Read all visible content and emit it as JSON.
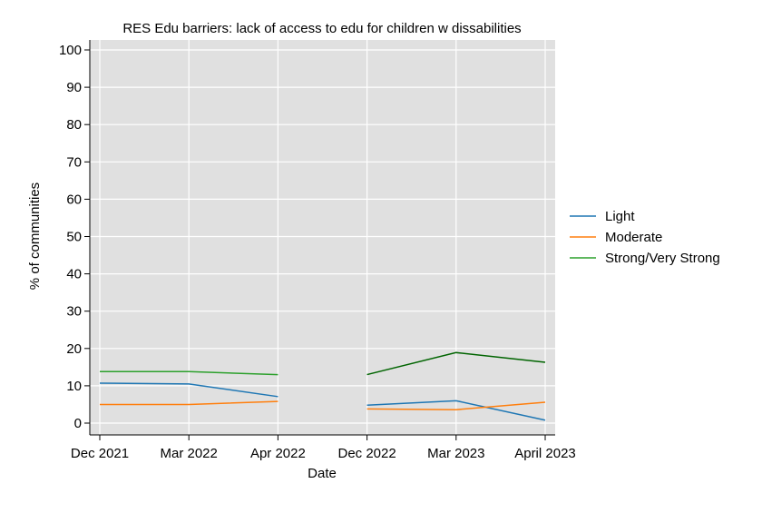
{
  "chart_data": {
    "type": "line",
    "title": "RES Edu barriers: lack of access to edu for children w dissabilities",
    "xlabel": "Date",
    "ylabel": "% of communities",
    "categories": [
      "Dec 2021",
      "Mar 2022",
      "Apr 2022",
      "Dec 2022",
      "Mar 2023",
      "April 2023"
    ],
    "ylim": [
      0,
      100
    ],
    "yticks": [
      0,
      10,
      20,
      30,
      40,
      50,
      60,
      70,
      80,
      90,
      100
    ],
    "grid": true,
    "legend_position": "right",
    "segments": [
      [
        0,
        1,
        2
      ],
      [
        3,
        4,
        5
      ]
    ],
    "series": [
      {
        "name": "Light",
        "color": "#1f77b4",
        "values": [
          10.7,
          10.5,
          7.1,
          4.8,
          6.0,
          0.8
        ]
      },
      {
        "name": "Moderate",
        "color": "#ff7f0e",
        "values": [
          5.0,
          5.0,
          5.8,
          3.8,
          3.6,
          5.6
        ]
      },
      {
        "name": "Strong/Very Strong",
        "color": "#2ca02c",
        "segment_colors": [
          "#2ca02c",
          "#006400"
        ],
        "values": [
          13.8,
          13.8,
          13.0,
          13.0,
          18.9,
          16.3
        ]
      }
    ]
  }
}
